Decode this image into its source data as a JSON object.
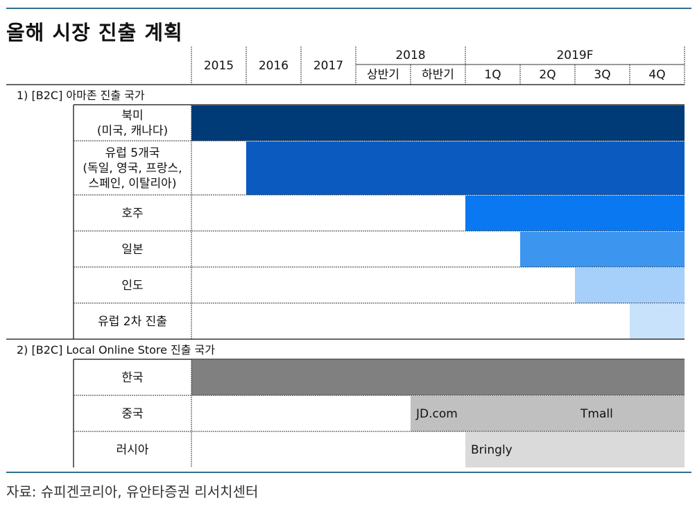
{
  "title": "올해 시장 진출 계획",
  "source": "자료: 슈피겐코리아, 유안타증권 리서치센터",
  "chart_data": {
    "type": "gantt",
    "periods": [
      "2015",
      "2016",
      "2017",
      "2018 상반기",
      "2018 하반기",
      "2019F 1Q",
      "2019F 2Q",
      "2019F 3Q",
      "2019F 4Q"
    ],
    "header": {
      "years": [
        {
          "label": "2015",
          "start": 0,
          "span": 1
        },
        {
          "label": "2016",
          "start": 1,
          "span": 1
        },
        {
          "label": "2017",
          "start": 2,
          "span": 1
        },
        {
          "label": "2018",
          "start": 3,
          "span": 2
        },
        {
          "label": "2019F",
          "start": 5,
          "span": 4
        }
      ],
      "subs": [
        {
          "label": "상반기",
          "start": 3
        },
        {
          "label": "하반기",
          "start": 4
        },
        {
          "label": "1Q",
          "start": 5
        },
        {
          "label": "2Q",
          "start": 6
        },
        {
          "label": "3Q",
          "start": 7
        },
        {
          "label": "4Q",
          "start": 8
        }
      ]
    },
    "sections": [
      {
        "label": "1) [B2C] 아마존 진출 국가",
        "rows": [
          {
            "label": "북미\n(미국, 캐나다)",
            "lines": 2,
            "segments": [
              {
                "start": 0,
                "end": 9,
                "color": "#003b78"
              }
            ]
          },
          {
            "label": "유럽 5개국\n(독일, 영국, 프랑스,\n스페인, 이탈리아)",
            "lines": 3,
            "segments": [
              {
                "start": 1,
                "end": 9,
                "color": "#0a5ac0"
              }
            ]
          },
          {
            "label": "호주",
            "lines": 1,
            "segments": [
              {
                "start": 5,
                "end": 9,
                "color": "#0a78f0"
              }
            ]
          },
          {
            "label": "일본",
            "lines": 1,
            "segments": [
              {
                "start": 6,
                "end": 9,
                "color": "#3c96f0"
              }
            ]
          },
          {
            "label": "인도",
            "lines": 1,
            "segments": [
              {
                "start": 7,
                "end": 9,
                "color": "#a6cffa"
              }
            ]
          },
          {
            "label": "유럽 2차 진출",
            "lines": 1,
            "segments": [
              {
                "start": 8,
                "end": 9,
                "color": "#c8e2fb"
              }
            ]
          }
        ]
      },
      {
        "label": "2) [B2C] Local Online Store 진출 국가",
        "rows": [
          {
            "label": "한국",
            "lines": 1,
            "segments": [
              {
                "start": 0,
                "end": 9,
                "color": "#808080"
              }
            ]
          },
          {
            "label": "중국",
            "lines": 1,
            "segments": [
              {
                "start": 4,
                "end": 9,
                "color": "#c0c0c0",
                "labels": [
                  {
                    "text": "JD.com",
                    "at": 4
                  },
                  {
                    "text": "Tmall",
                    "at": 7
                  }
                ]
              }
            ]
          },
          {
            "label": "러시아",
            "lines": 1,
            "segments": [
              {
                "start": 5,
                "end": 9,
                "color": "#dadada",
                "labels": [
                  {
                    "text": "Bringly",
                    "at": 5
                  }
                ]
              }
            ]
          }
        ]
      }
    ]
  }
}
